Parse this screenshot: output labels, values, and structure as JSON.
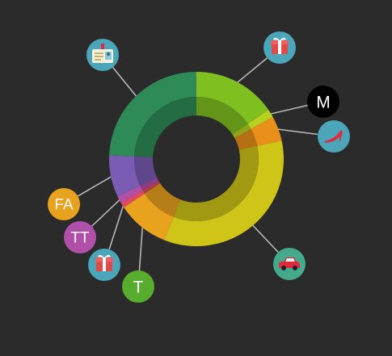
{
  "colors": {
    "background": "#2b2b2b",
    "connector": "#bdbdbd",
    "inner_shade": "rgba(0,0,0,0.22)"
  },
  "chart_data": {
    "type": "pie",
    "variant": "donut",
    "start": "12 o'clock",
    "direction": "clockwise",
    "title": "",
    "slices": [
      {
        "value": 4.0,
        "color": "#7fbf1f",
        "badge": {
          "kind": "icon",
          "icon": "gift-icon",
          "bg": "#4aa6b8"
        }
      },
      {
        "value": 0.4,
        "color": "#b8d020",
        "badge": {
          "kind": "text",
          "text": "M",
          "bg": "#000000"
        }
      },
      {
        "value": 1.2,
        "color": "#e8901a",
        "badge": {
          "kind": "icon",
          "icon": "high-heel-icon",
          "bg": "#4aa6b8"
        }
      },
      {
        "value": 8.9,
        "color": "#cfc418",
        "badge": {
          "kind": "icon",
          "icon": "car-icon",
          "bg": "#45a98b"
        }
      },
      {
        "value": 2.5,
        "color": "#e8a21e",
        "badge": {
          "kind": "text",
          "text": "T",
          "bg": "#58ad2e"
        }
      },
      {
        "value": 0.25,
        "color": "#e04a60",
        "badge": {
          "kind": "icon",
          "icon": "gift-icon",
          "bg": "#4aa6b8"
        }
      },
      {
        "value": 0.35,
        "color": "#b250a8",
        "badge": {
          "kind": "text",
          "text": "TT",
          "bg": "#b050a8"
        }
      },
      {
        "value": 2.0,
        "color": "#7a5cb4",
        "badge": {
          "kind": "text",
          "text": "FA",
          "bg": "#e8a21e"
        }
      },
      {
        "value": 6.3,
        "color": "#2e8b58",
        "badge": {
          "kind": "icon",
          "icon": "id-badge-icon",
          "bg": "#4aa6b8"
        }
      }
    ]
  }
}
